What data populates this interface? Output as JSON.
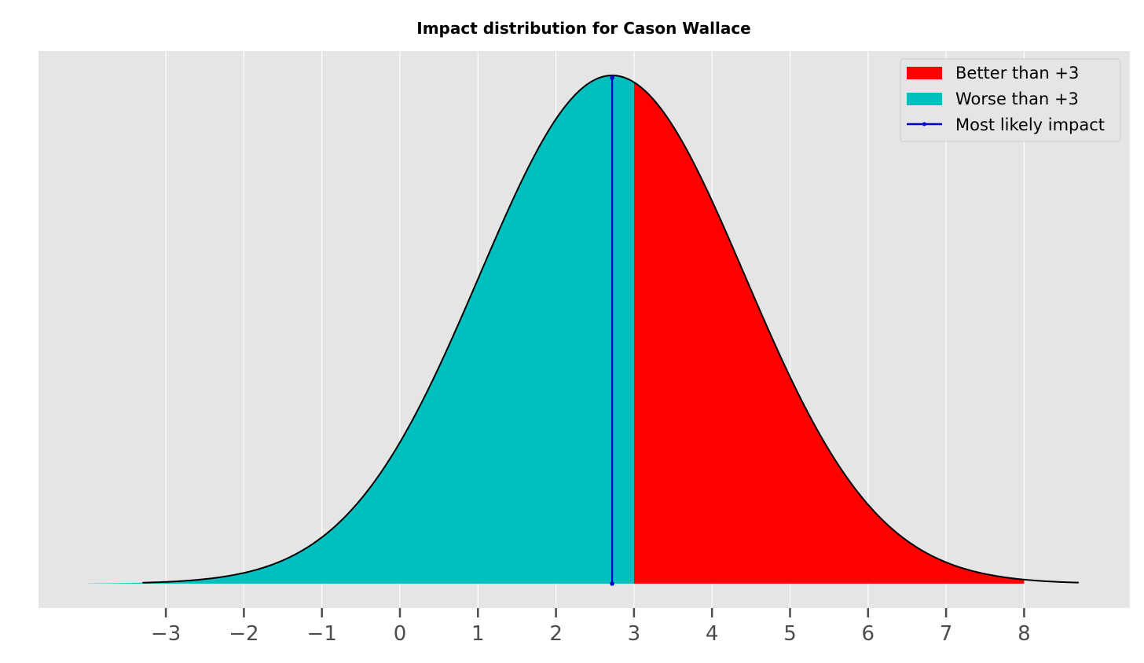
{
  "chart_data": {
    "type": "area",
    "title": "Impact distribution for Cason Wallace",
    "xlabel": "",
    "ylabel": "",
    "distribution": {
      "kind": "normal",
      "mean": 2.72,
      "std": 1.7,
      "x_range": [
        -4,
        8.7
      ]
    },
    "threshold": 3,
    "most_likely_impact": 2.72,
    "x_ticks": [
      -3,
      -2,
      -1,
      0,
      1,
      2,
      3,
      4,
      5,
      6,
      7,
      8
    ],
    "x_tick_labels": [
      "−3",
      "−2",
      "−1",
      "0",
      "1",
      "2",
      "3",
      "4",
      "5",
      "6",
      "7",
      "8"
    ],
    "xlim": [
      -4.6,
      9.3
    ],
    "y_ticks_visible": false,
    "grid": "vertical",
    "legend_placement": "top-right",
    "series": [
      {
        "name": "Better than +3",
        "kind": "fill",
        "region": "x > 3",
        "color": "#ff0000"
      },
      {
        "name": "Worse than +3",
        "kind": "fill",
        "region": "x < 3",
        "color": "#00bfbf"
      },
      {
        "name": "Most likely impact",
        "kind": "vertical-line",
        "x": 2.72,
        "color": "#0000cc"
      }
    ]
  },
  "colors": {
    "plot_background": "#e5e5e5",
    "grid": "#ffffff",
    "curve": "#000000",
    "better": "#ff0000",
    "worse": "#00bfbf",
    "most_likely": "#0000cc"
  }
}
